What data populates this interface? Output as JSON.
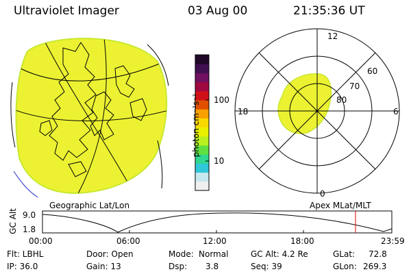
{
  "header": {
    "instrument": "Ultraviolet Imager",
    "date": "03 Aug 00",
    "time": "21:35:36 UT"
  },
  "colorbar": {
    "unit_label": "photon cm⁻²s⁻¹",
    "tick_labels": [
      "100",
      "10"
    ],
    "colors": [
      "#f0f0f0",
      "#c8e8f0",
      "#30c8d8",
      "#30d890",
      "#60e040",
      "#b8f020",
      "#e8f000",
      "#f8d800",
      "#f8a000",
      "#e05000",
      "#d01018",
      "#a00840",
      "#701060",
      "#401050",
      "#200828"
    ]
  },
  "map_left": {
    "label": "Geographic Lat/Lon",
    "fill_color": "#ecf232"
  },
  "map_right": {
    "label": "Apex MLat/MLT",
    "mlt_labels": {
      "top": "12",
      "left": "18",
      "right": "6",
      "bottom": "0"
    },
    "lat_labels": [
      "60",
      "70",
      "80"
    ],
    "fill_color": "#ecf232"
  },
  "altitude_plot": {
    "ylabel": "GC Alt",
    "y_ticks": [
      "9.0",
      "1.8"
    ],
    "x_ticks": [
      "00:00",
      "06:00",
      "12:00",
      "18:00",
      "23:59"
    ],
    "marker_color": "#e00000"
  },
  "status": {
    "filter": "Flt: LBHL",
    "ip": "IP: 36.0",
    "door": "Door: Open",
    "gain": "Gain: 13",
    "mode_label": "Mode:",
    "mode_value": "Normal",
    "dsp_label": "Dsp:",
    "dsp_value": "3.8",
    "gc_alt": "GC Alt: 4.2 Re",
    "seq": "Seq: 39",
    "glat_label": "GLat:",
    "glat_value": "72.8",
    "glon_label": "GLon:",
    "glon_value": "269.3"
  }
}
